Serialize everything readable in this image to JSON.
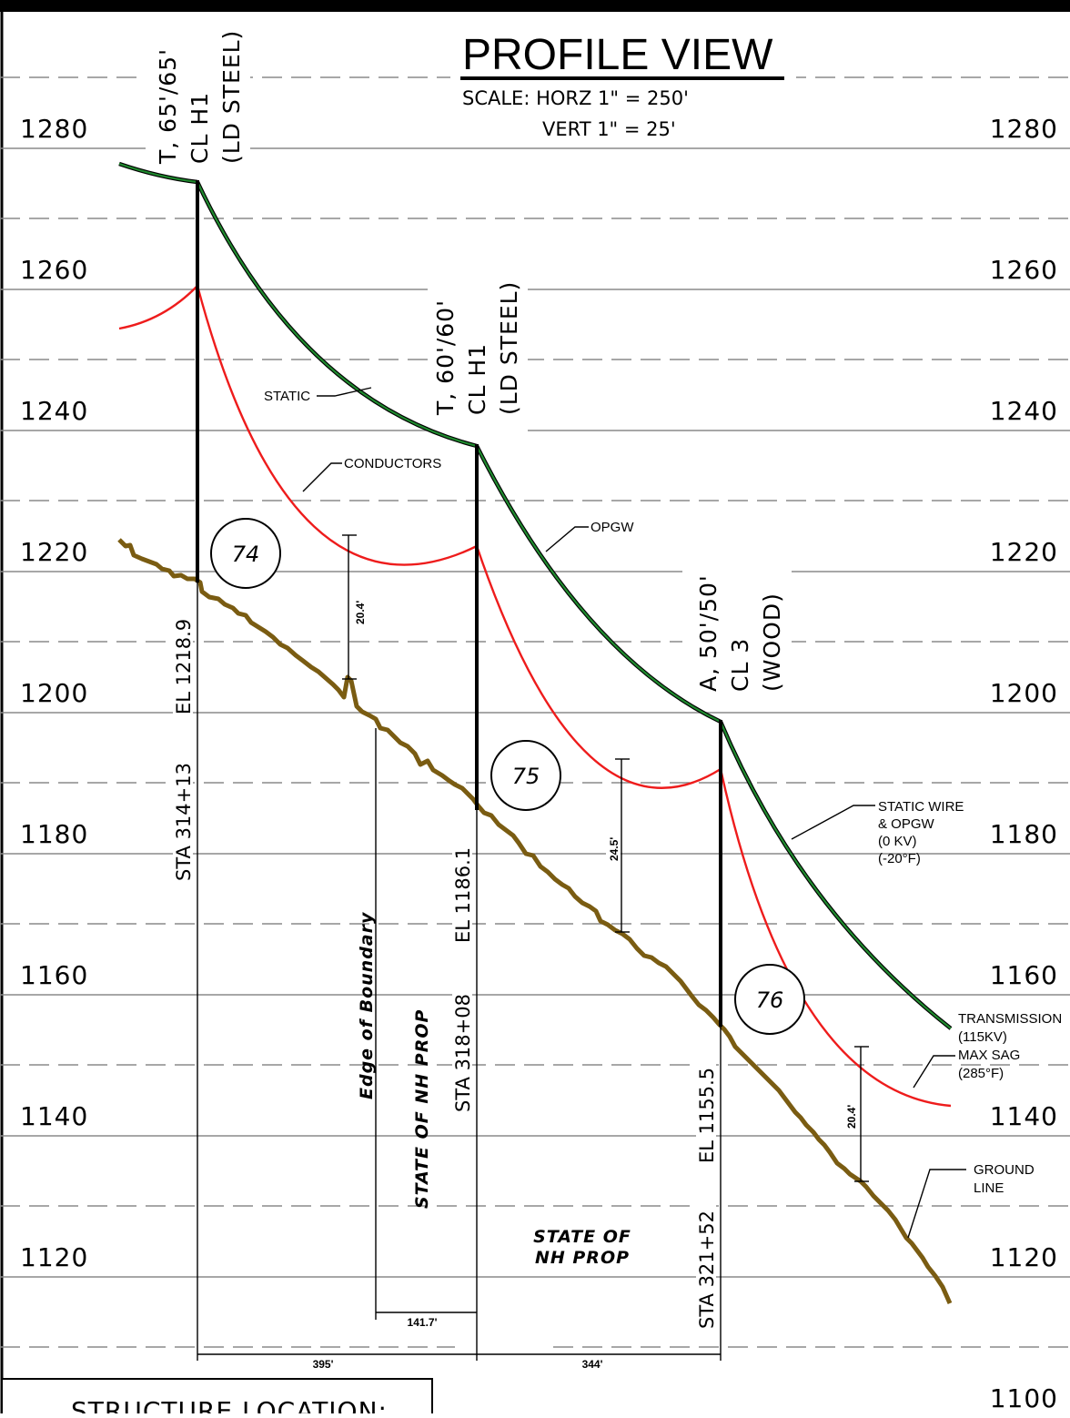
{
  "title": "PROFILE VIEW",
  "scale": {
    "horizontal": "SCALE:  HORZ  1\"  =  250'",
    "vertical": "VERT  1\"  =  25'"
  },
  "elevation_labels": [
    "1280",
    "1260",
    "1240",
    "1220",
    "1200",
    "1180",
    "1160",
    "1140",
    "1120",
    "1100"
  ],
  "structures": [
    {
      "number": "74",
      "type": "T,  65'/65'",
      "class": "CL  H1",
      "material": "(LD  STEEL)",
      "elevation": "EL  1218.9",
      "station": "STA  314+13"
    },
    {
      "number": "75",
      "type": "T,  60'/60'",
      "class": "CL  H1",
      "material": "(LD  STEEL)",
      "elevation": "EL  1186.1",
      "station": "STA  318+08"
    },
    {
      "number": "76",
      "type": "A,  50'/50'",
      "class": "CL  3",
      "material": "(WOOD)",
      "elevation": "EL  1155.5",
      "station": "STA  321+52"
    }
  ],
  "callouts": {
    "static": "STATIC",
    "conductors": "CONDUCTORS",
    "opgw": "OPGW",
    "static_wire": [
      "STATIC WIRE",
      "& OPGW",
      "(0  KV)",
      "(-20°F)"
    ],
    "transmission": [
      "TRANSMISSION",
      "(115KV)",
      "MAX  SAG",
      "(285°F)"
    ],
    "ground_line": [
      "GROUND",
      "LINE"
    ]
  },
  "clearances": [
    "20.4'",
    "24.5'",
    "20.4'"
  ],
  "spans": [
    "395'",
    "344'",
    "141.7'"
  ],
  "property": {
    "edge": "Edge  of  Boundary",
    "state_vertical": "STATE  OF  NH  PROP",
    "state_line1": "STATE  OF",
    "state_line2": "NH  PROP"
  },
  "structure_location_label": "STRUCTURE  LOCATION:",
  "colors": {
    "static": "#1f8a2e",
    "conductor": "#ee1c1c",
    "ground": "#7a5c12",
    "grid": "#8a8a8a"
  }
}
